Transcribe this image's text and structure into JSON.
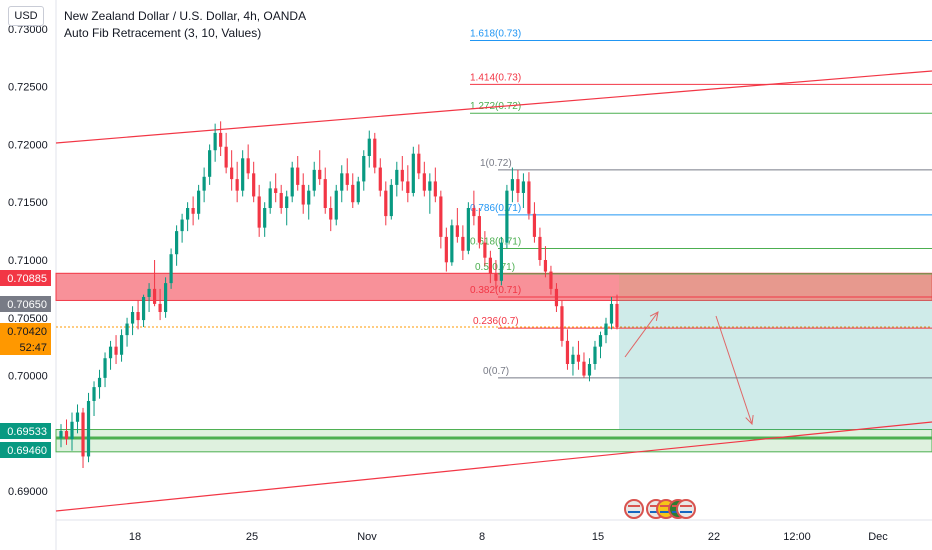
{
  "header": {
    "title": "New Zealand Dollar / U.S. Dollar, 4h, OANDA",
    "subtitle": "Auto Fib Retracement (3, 10, Values)",
    "currency_button": "USD"
  },
  "chart_data": {
    "type": "candlestick",
    "y_range": [
      0.6875,
      0.7325
    ],
    "y_ticks": [
      "0.73000",
      "0.72500",
      "0.72000",
      "0.71500",
      "0.71000",
      "0.70500",
      "0.70000",
      "0.69000"
    ],
    "y_tick_values": [
      0.73,
      0.725,
      0.72,
      0.715,
      0.71,
      0.705,
      0.7,
      0.69
    ],
    "x_ticks": [
      "18",
      "25",
      "Nov",
      "8",
      "15",
      "22",
      "12:00",
      "Dec"
    ],
    "price_tags": [
      {
        "label": "0.70885",
        "value": 0.70885,
        "color": "#f23645",
        "text_color": "#ffffff"
      },
      {
        "label": "0.70650",
        "value": 0.7065,
        "color": "#787b86",
        "text_color": "#ffffff"
      },
      {
        "label": "0.70420",
        "value": 0.7042,
        "color": "#ff9800",
        "text_color": "#131722"
      },
      {
        "label": "52:47",
        "value": 0.7028,
        "color": "#ff9800",
        "text_color": "#131722"
      },
      {
        "label": "0.69533",
        "value": 0.69533,
        "color": "#089981",
        "text_color": "#ffffff"
      },
      {
        "label": "0.69460",
        "value": 0.6946,
        "color": "#089981",
        "text_color": "#ffffff"
      }
    ],
    "fib_levels": [
      {
        "label": "1.618(0.73)",
        "value": 0.729,
        "color": "#2196f3"
      },
      {
        "label": "1.414(0.73)",
        "value": 0.7252,
        "color": "#f23645"
      },
      {
        "label": "1.272(0.72)",
        "value": 0.7227,
        "color": "#4caf50"
      },
      {
        "label": "1(0.72)",
        "value": 0.7178,
        "color": "#787b86"
      },
      {
        "label": "0.786(0.71)",
        "value": 0.7139,
        "color": "#2196f3"
      },
      {
        "label": "0.618(0.71)",
        "value": 0.711,
        "color": "#4caf50"
      },
      {
        "label": "0.5(0.71)",
        "value": 0.7088,
        "color": "#4caf50"
      },
      {
        "label": "0.382(0.71)",
        "value": 0.7068,
        "color": "#f23645"
      },
      {
        "label": "0.236(0.7)",
        "value": 0.7041,
        "color": "#f23645"
      },
      {
        "label": "0(0.7)",
        "value": 0.6998,
        "color": "#787b86"
      }
    ],
    "zones": [
      {
        "name": "resistance-zone",
        "from": 0.7065,
        "to": 0.70885,
        "color": "#f23645"
      },
      {
        "name": "support-zone",
        "from": 0.6934,
        "to": 0.69533,
        "color": "#4caf50"
      }
    ],
    "horizontal_lines": [
      {
        "name": "support-line",
        "value": 0.6946,
        "color": "#4caf50"
      },
      {
        "name": "current-price-line",
        "value": 0.7042,
        "color": "#ff9800"
      }
    ],
    "candles": [
      [
        0.6946,
        0.6958,
        0.6938,
        0.6952
      ],
      [
        0.6952,
        0.6962,
        0.694,
        0.6945
      ],
      [
        0.6945,
        0.6968,
        0.6935,
        0.696
      ],
      [
        0.696,
        0.6975,
        0.695,
        0.6968
      ],
      [
        0.6968,
        0.6972,
        0.692,
        0.693
      ],
      [
        0.693,
        0.6985,
        0.6925,
        0.6978
      ],
      [
        0.6978,
        0.6995,
        0.6965,
        0.699
      ],
      [
        0.699,
        0.7005,
        0.698,
        0.6998
      ],
      [
        0.6998,
        0.702,
        0.699,
        0.7015
      ],
      [
        0.7015,
        0.703,
        0.7005,
        0.7025
      ],
      [
        0.7025,
        0.7035,
        0.701,
        0.7018
      ],
      [
        0.7018,
        0.704,
        0.7012,
        0.7035
      ],
      [
        0.7035,
        0.705,
        0.7025,
        0.7045
      ],
      [
        0.7045,
        0.706,
        0.7035,
        0.7055
      ],
      [
        0.7055,
        0.7065,
        0.704,
        0.7048
      ],
      [
        0.7048,
        0.707,
        0.7042,
        0.7068
      ],
      [
        0.7068,
        0.708,
        0.7055,
        0.7075
      ],
      [
        0.7075,
        0.71,
        0.706,
        0.7062
      ],
      [
        0.7062,
        0.7075,
        0.7048,
        0.7055
      ],
      [
        0.7055,
        0.7085,
        0.705,
        0.708
      ],
      [
        0.708,
        0.711,
        0.7075,
        0.7105
      ],
      [
        0.7105,
        0.713,
        0.7095,
        0.7125
      ],
      [
        0.7125,
        0.714,
        0.7115,
        0.7135
      ],
      [
        0.7135,
        0.715,
        0.7125,
        0.7145
      ],
      [
        0.7145,
        0.7155,
        0.713,
        0.714
      ],
      [
        0.714,
        0.7165,
        0.7135,
        0.716
      ],
      [
        0.716,
        0.718,
        0.715,
        0.7172
      ],
      [
        0.7172,
        0.72,
        0.7165,
        0.7195
      ],
      [
        0.7195,
        0.7218,
        0.7185,
        0.721
      ],
      [
        0.721,
        0.722,
        0.719,
        0.7198
      ],
      [
        0.7198,
        0.721,
        0.7175,
        0.718
      ],
      [
        0.718,
        0.7195,
        0.716,
        0.717
      ],
      [
        0.717,
        0.7185,
        0.715,
        0.716
      ],
      [
        0.716,
        0.7195,
        0.7155,
        0.7188
      ],
      [
        0.7188,
        0.72,
        0.717,
        0.7175
      ],
      [
        0.7175,
        0.7185,
        0.715,
        0.7155
      ],
      [
        0.7155,
        0.7165,
        0.712,
        0.7128
      ],
      [
        0.7128,
        0.715,
        0.712,
        0.7145
      ],
      [
        0.7145,
        0.7168,
        0.714,
        0.7162
      ],
      [
        0.7162,
        0.7175,
        0.715,
        0.7158
      ],
      [
        0.7158,
        0.7165,
        0.714,
        0.7145
      ],
      [
        0.7145,
        0.716,
        0.713,
        0.7155
      ],
      [
        0.7155,
        0.7185,
        0.715,
        0.718
      ],
      [
        0.718,
        0.719,
        0.716,
        0.7165
      ],
      [
        0.7165,
        0.7175,
        0.714,
        0.7148
      ],
      [
        0.7148,
        0.7165,
        0.7135,
        0.716
      ],
      [
        0.716,
        0.7185,
        0.7155,
        0.7178
      ],
      [
        0.7178,
        0.7195,
        0.7165,
        0.717
      ],
      [
        0.717,
        0.718,
        0.714,
        0.7145
      ],
      [
        0.7145,
        0.7155,
        0.7125,
        0.7135
      ],
      [
        0.7135,
        0.7165,
        0.713,
        0.716
      ],
      [
        0.716,
        0.7182,
        0.715,
        0.7175
      ],
      [
        0.7175,
        0.7188,
        0.716,
        0.7165
      ],
      [
        0.7165,
        0.7175,
        0.7145,
        0.715
      ],
      [
        0.715,
        0.7172,
        0.7148,
        0.7168
      ],
      [
        0.7168,
        0.7195,
        0.716,
        0.719
      ],
      [
        0.719,
        0.7212,
        0.718,
        0.7205
      ],
      [
        0.7205,
        0.721,
        0.7175,
        0.718
      ],
      [
        0.718,
        0.7188,
        0.7155,
        0.716
      ],
      [
        0.716,
        0.7168,
        0.713,
        0.7138
      ],
      [
        0.7138,
        0.717,
        0.7135,
        0.7165
      ],
      [
        0.7165,
        0.7185,
        0.7155,
        0.7178
      ],
      [
        0.7178,
        0.719,
        0.716,
        0.7168
      ],
      [
        0.7168,
        0.7182,
        0.715,
        0.7158
      ],
      [
        0.7158,
        0.7198,
        0.7155,
        0.7192
      ],
      [
        0.7192,
        0.72,
        0.717,
        0.7175
      ],
      [
        0.7175,
        0.7185,
        0.7155,
        0.716
      ],
      [
        0.716,
        0.7175,
        0.714,
        0.7168
      ],
      [
        0.7168,
        0.718,
        0.715,
        0.7155
      ],
      [
        0.7155,
        0.716,
        0.711,
        0.712
      ],
      [
        0.712,
        0.7128,
        0.709,
        0.7098
      ],
      [
        0.7098,
        0.7135,
        0.7095,
        0.713
      ],
      [
        0.713,
        0.7145,
        0.7115,
        0.712
      ],
      [
        0.712,
        0.713,
        0.71,
        0.7108
      ],
      [
        0.7108,
        0.715,
        0.7105,
        0.7145
      ],
      [
        0.7145,
        0.716,
        0.713,
        0.7138
      ],
      [
        0.7138,
        0.7145,
        0.711,
        0.7115
      ],
      [
        0.7115,
        0.7125,
        0.7095,
        0.7102
      ],
      [
        0.7102,
        0.7108,
        0.708,
        0.7088
      ],
      [
        0.7088,
        0.71,
        0.7075,
        0.7082
      ],
      [
        0.7082,
        0.712,
        0.7078,
        0.7115
      ],
      [
        0.7115,
        0.7165,
        0.711,
        0.716
      ],
      [
        0.716,
        0.718,
        0.715,
        0.717
      ],
      [
        0.717,
        0.7178,
        0.715,
        0.7158
      ],
      [
        0.7158,
        0.7175,
        0.7145,
        0.7168
      ],
      [
        0.7168,
        0.7176,
        0.7135,
        0.714
      ],
      [
        0.714,
        0.715,
        0.7115,
        0.712
      ],
      [
        0.712,
        0.7128,
        0.7095,
        0.71
      ],
      [
        0.71,
        0.7112,
        0.7085,
        0.709
      ],
      [
        0.709,
        0.7095,
        0.707,
        0.7075
      ],
      [
        0.7075,
        0.708,
        0.7055,
        0.706
      ],
      [
        0.706,
        0.7065,
        0.7025,
        0.703
      ],
      [
        0.703,
        0.704,
        0.7005,
        0.701
      ],
      [
        0.701,
        0.7025,
        0.7,
        0.7018
      ],
      [
        0.7018,
        0.703,
        0.7005,
        0.7012
      ],
      [
        0.7012,
        0.702,
        0.6998,
        0.7
      ],
      [
        0.7,
        0.7015,
        0.6995,
        0.701
      ],
      [
        0.701,
        0.703,
        0.7005,
        0.7025
      ],
      [
        0.7025,
        0.7038,
        0.7015,
        0.7035
      ],
      [
        0.7035,
        0.705,
        0.7028,
        0.7045
      ],
      [
        0.7045,
        0.7068,
        0.704,
        0.7062
      ],
      [
        0.7062,
        0.707,
        0.704,
        0.7042
      ]
    ]
  }
}
